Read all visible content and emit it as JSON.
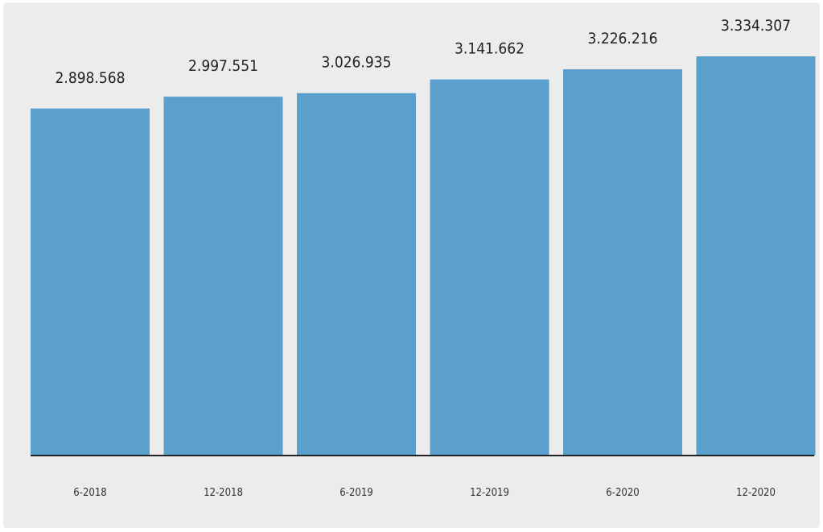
{
  "chart_data": {
    "type": "bar",
    "title": "",
    "xlabel": "",
    "ylabel": "",
    "categories": [
      "6-2018",
      "12-2018",
      "6-2019",
      "12-2019",
      "6-2020",
      "12-2020"
    ],
    "values": [
      2898568,
      2997551,
      3026935,
      3141662,
      3226216,
      3334307
    ],
    "value_labels": [
      "2.898.568",
      "2.997.551",
      "3.026.935",
      "3.141.662",
      "3.226.216",
      "3.334.307"
    ],
    "ylim": [
      0,
      3500000
    ],
    "grid": false,
    "legend": "none",
    "colors": {
      "bar": "#5b9fcc",
      "axis": "#222222",
      "background": "#ececec"
    }
  }
}
